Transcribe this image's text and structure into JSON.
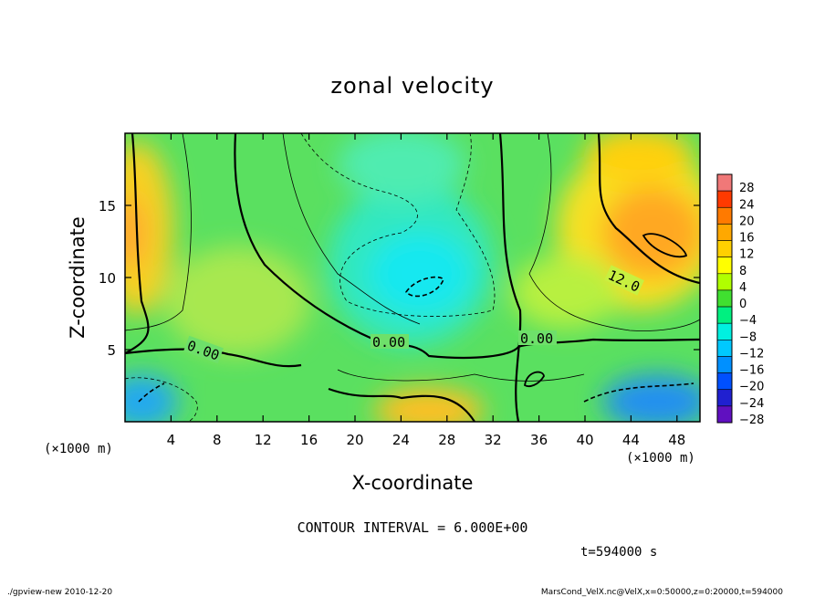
{
  "chart_data": {
    "type": "heatmap",
    "title": "zonal velocity",
    "xlabel": "X-coordinate",
    "ylabel": "Z-coordinate",
    "x_unit": "(×1000 m)",
    "y_unit": "(×1000 m)",
    "xlim": [
      0,
      50
    ],
    "ylim": [
      0,
      20
    ],
    "x_ticks": [
      "4",
      "8",
      "12",
      "16",
      "20",
      "24",
      "28",
      "32",
      "36",
      "40",
      "44",
      "48"
    ],
    "x_tick_values": [
      4,
      8,
      12,
      16,
      20,
      24,
      28,
      32,
      36,
      40,
      44,
      48
    ],
    "y_ticks": [
      "5",
      "10",
      "15"
    ],
    "y_tick_values": [
      5,
      10,
      15
    ],
    "colorbar": {
      "levels": [
        28,
        24,
        20,
        16,
        12,
        8,
        4,
        0,
        -4,
        -8,
        -12,
        -16,
        -20,
        -24,
        -28
      ],
      "labels": [
        "28",
        "24",
        "20",
        "16",
        "12",
        "8",
        "4",
        "0",
        "−4",
        "−8",
        "−12",
        "−16",
        "−20",
        "−24",
        "−28"
      ],
      "colors": [
        "#f07878",
        "#ff3a00",
        "#ff7a00",
        "#ffa800",
        "#ffd000",
        "#ffff00",
        "#b0ff00",
        "#40e030",
        "#00f080",
        "#00f0e0",
        "#00c8ff",
        "#0090ff",
        "#0050ff",
        "#2020d0",
        "#6010c0"
      ]
    },
    "contour_labels": [
      "0.00",
      "0.00",
      "0.00",
      "12.0"
    ],
    "contour_interval_text": "CONTOUR INTERVAL = 6.000E+00",
    "time_text": "t=594000 s"
  },
  "footer": {
    "left": "./gpview-new 2010-12-20",
    "right": "MarsCond_VelX.nc@VelX,x=0:50000,z=0:20000,t=594000"
  }
}
